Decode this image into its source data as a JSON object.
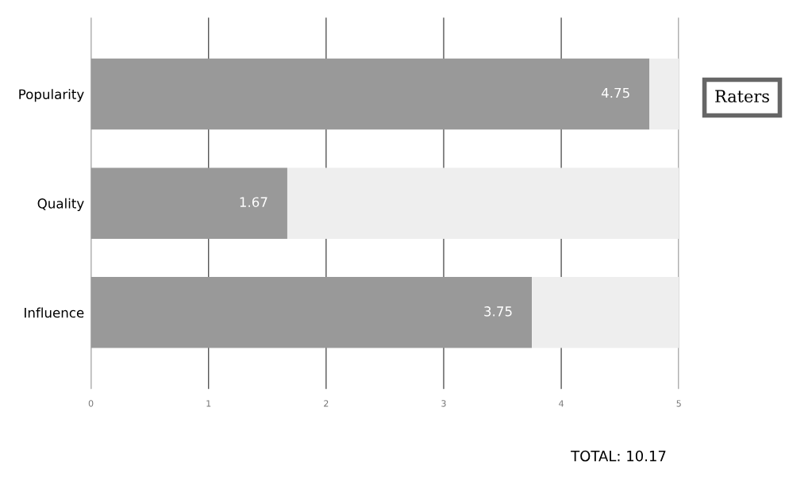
{
  "chart_data": {
    "type": "bar",
    "orientation": "horizontal",
    "stacked": true,
    "categories": [
      "Popularity",
      "Quality",
      "Influence"
    ],
    "series": [
      {
        "color": "#999999",
        "values": [
          4.75,
          1.67,
          3.75
        ],
        "value_labels": [
          "4.75",
          "1.67",
          "3.75"
        ]
      },
      {
        "color": "#eeeeee",
        "values": [
          0.25,
          3.33,
          1.25
        ]
      }
    ],
    "xlim": [
      0,
      5
    ],
    "xticks": [
      0,
      1,
      2,
      3,
      4,
      5
    ],
    "grid": "x",
    "annotations": [
      "Raters",
      "TOTAL: 10.17"
    ]
  }
}
